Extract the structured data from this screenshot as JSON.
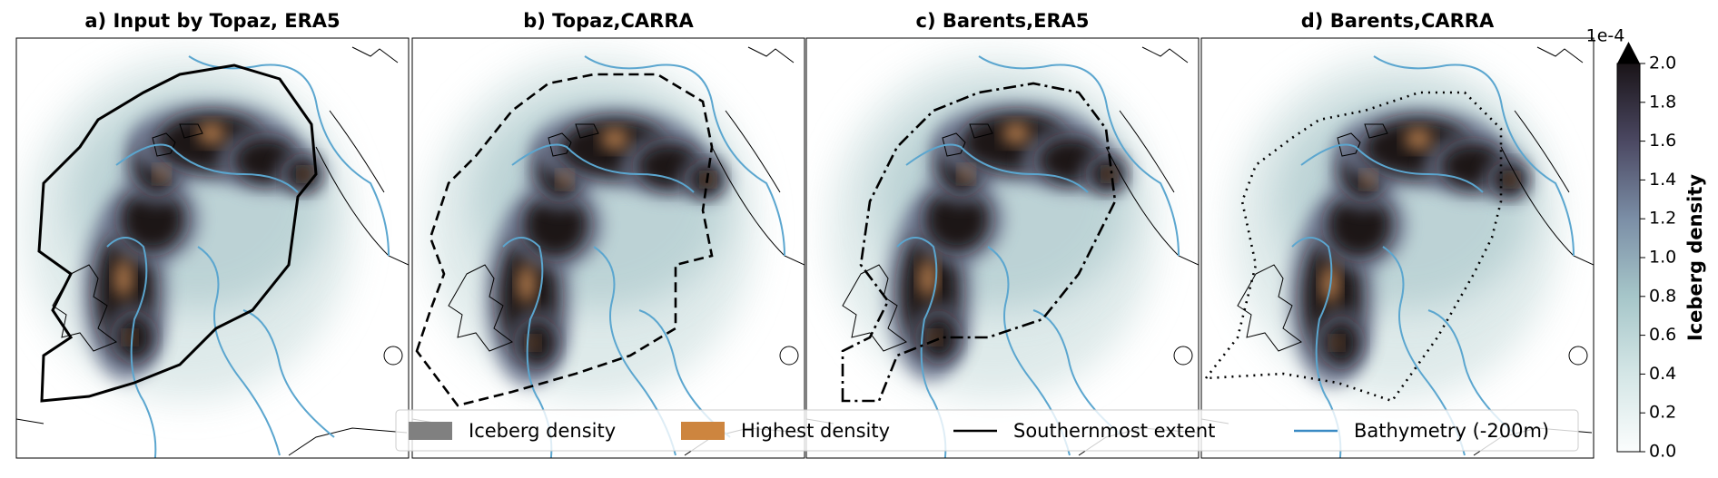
{
  "panels": [
    {
      "title": "a) Input by Topaz, ERA5"
    },
    {
      "title": "b)  Topaz,CARRA"
    },
    {
      "title": "c)  Barents,ERA5"
    },
    {
      "title": "d)  Barents,CARRA"
    }
  ],
  "legend": [
    {
      "label": "Iceberg density"
    },
    {
      "label": "Highest density"
    },
    {
      "label": "Southernmost extent"
    },
    {
      "label": "Bathymetry (-200m)"
    }
  ],
  "colorbar": {
    "label": "Iceberg density",
    "exponent_label": "1e-4",
    "lim": [
      0,
      2
    ],
    "ticks": [
      {
        "value": 0,
        "label": "0.0"
      },
      {
        "value": 0.2,
        "label": "0.2"
      },
      {
        "value": 0.4,
        "label": "0.4"
      },
      {
        "value": 0.6,
        "label": "0.6"
      },
      {
        "value": 0.8,
        "label": "0.8"
      },
      {
        "value": 1,
        "label": "1.0"
      },
      {
        "value": 1.2,
        "label": "1.2"
      },
      {
        "value": 1.4,
        "label": "1.4"
      },
      {
        "value": 1.6,
        "label": "1.6"
      },
      {
        "value": 1.8,
        "label": "1.8"
      },
      {
        "value": 2,
        "label": "2.0"
      }
    ]
  }
}
